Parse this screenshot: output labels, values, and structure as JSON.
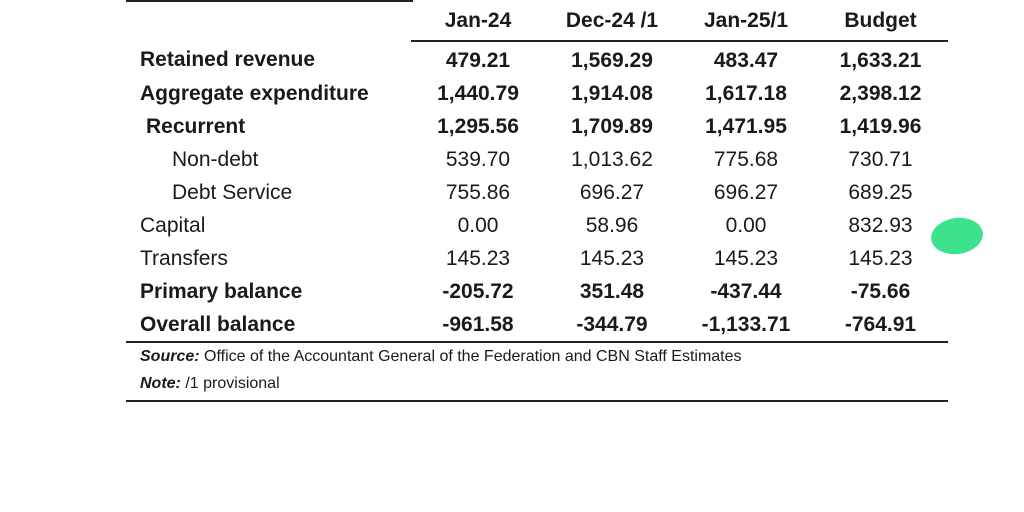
{
  "table": {
    "columns": [
      "Jan-24",
      "Dec-24 /1",
      "Jan-25/1",
      "Budget"
    ],
    "rows": [
      {
        "label": "Retained revenue",
        "values": [
          "479.21",
          "1,569.29",
          "483.47",
          "1,633.21"
        ]
      },
      {
        "label": "Aggregate expenditure",
        "values": [
          "1,440.79",
          "1,914.08",
          "1,617.18",
          "2,398.12"
        ]
      },
      {
        "label": "Recurrent",
        "values": [
          "1,295.56",
          "1,709.89",
          "1,471.95",
          "1,419.96"
        ]
      },
      {
        "label": "Non-debt",
        "values": [
          "539.70",
          "1,013.62",
          "775.68",
          "730.71"
        ]
      },
      {
        "label": "Debt Service",
        "values": [
          "755.86",
          "696.27",
          "696.27",
          "689.25"
        ]
      },
      {
        "label": "Capital",
        "values": [
          "0.00",
          "58.96",
          "0.00",
          "832.93"
        ]
      },
      {
        "label": "Transfers",
        "values": [
          "145.23",
          "145.23",
          "145.23",
          "145.23"
        ]
      },
      {
        "label": "Primary balance",
        "values": [
          "-205.72",
          "351.48",
          "-437.44",
          "-75.66"
        ]
      },
      {
        "label": "Overall balance",
        "values": [
          "-961.58",
          "-344.79",
          "-1,133.71",
          "-764.91"
        ]
      }
    ]
  },
  "notes": {
    "source_key": "Source:",
    "source_text": "Office of the Accountant General of the Federation and CBN Staff Estimates",
    "note_key": "Note:",
    "note_text": "/1 provisional"
  },
  "annotation": {
    "marker_color": "#3de28f"
  }
}
